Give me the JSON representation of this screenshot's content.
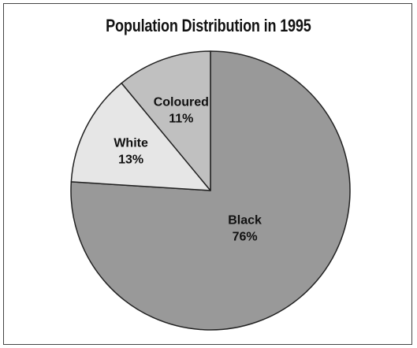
{
  "chart_data": {
    "type": "pie",
    "title": "Population Distribution in 1995",
    "slices": [
      {
        "label": "Black",
        "value": 76,
        "value_label": "76%",
        "color": "#999999"
      },
      {
        "label": "White",
        "value": 13,
        "value_label": "13%",
        "color": "#e6e6e6"
      },
      {
        "label": "Coloured",
        "value": 11,
        "value_label": "11%",
        "color": "#c0c0c0"
      }
    ],
    "start_angle": "12 o'clock",
    "direction": "clockwise",
    "legend": "none"
  }
}
